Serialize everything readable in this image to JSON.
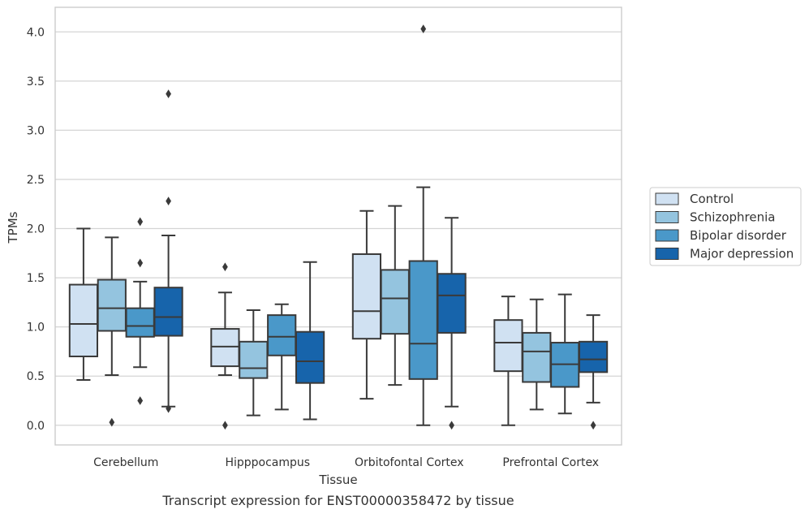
{
  "caption": "Transcript expression for ENST00000358472 by tissue",
  "chart_data": {
    "type": "box",
    "xlabel": "Tissue",
    "ylabel": "TPMs",
    "ylim": [
      -0.2,
      4.25
    ],
    "yticks": [
      0.0,
      0.5,
      1.0,
      1.5,
      2.0,
      2.5,
      3.0,
      3.5,
      4.0
    ],
    "ytick_labels": [
      "0.0",
      "0.5",
      "1.0",
      "1.5",
      "2.0",
      "2.5",
      "3.0",
      "3.5",
      "4.0"
    ],
    "grid": "horizontal",
    "legend_position": "right",
    "categories": [
      "Cerebellum",
      "Hipppocampus",
      "Orbitofontal Cortex",
      "Prefrontal Cortex"
    ],
    "series": [
      {
        "name": "Control",
        "color": "#d0e1f2",
        "boxes": [
          {
            "whislo": 0.46,
            "q1": 0.7,
            "med": 1.03,
            "q3": 1.43,
            "whishi": 2.0,
            "fliers": []
          },
          {
            "whislo": 0.51,
            "q1": 0.6,
            "med": 0.8,
            "q3": 0.98,
            "whishi": 1.35,
            "fliers": [
              1.61,
              0.0
            ]
          },
          {
            "whislo": 0.27,
            "q1": 0.88,
            "med": 1.16,
            "q3": 1.74,
            "whishi": 2.18,
            "fliers": []
          },
          {
            "whislo": 0.0,
            "q1": 0.55,
            "med": 0.84,
            "q3": 1.07,
            "whishi": 1.31,
            "fliers": []
          }
        ]
      },
      {
        "name": "Schizophrenia",
        "color": "#94c4df",
        "boxes": [
          {
            "whislo": 0.51,
            "q1": 0.96,
            "med": 1.19,
            "q3": 1.48,
            "whishi": 1.91,
            "fliers": [
              0.03
            ]
          },
          {
            "whislo": 0.1,
            "q1": 0.48,
            "med": 0.58,
            "q3": 0.85,
            "whishi": 1.17,
            "fliers": []
          },
          {
            "whislo": 0.41,
            "q1": 0.93,
            "med": 1.29,
            "q3": 1.58,
            "whishi": 2.23,
            "fliers": []
          },
          {
            "whislo": 0.16,
            "q1": 0.44,
            "med": 0.75,
            "q3": 0.94,
            "whishi": 1.28,
            "fliers": []
          }
        ]
      },
      {
        "name": "Bipolar disorder",
        "color": "#4a98c9",
        "boxes": [
          {
            "whislo": 0.59,
            "q1": 0.9,
            "med": 1.01,
            "q3": 1.19,
            "whishi": 1.46,
            "fliers": [
              2.07,
              1.65,
              0.25
            ]
          },
          {
            "whislo": 0.16,
            "q1": 0.71,
            "med": 0.9,
            "q3": 1.12,
            "whishi": 1.23,
            "fliers": []
          },
          {
            "whislo": 0.0,
            "q1": 0.47,
            "med": 0.83,
            "q3": 1.67,
            "whishi": 2.42,
            "fliers": [
              4.03
            ]
          },
          {
            "whislo": 0.12,
            "q1": 0.39,
            "med": 0.62,
            "q3": 0.84,
            "whishi": 1.33,
            "fliers": []
          }
        ]
      },
      {
        "name": "Major depression",
        "color": "#1764ab",
        "boxes": [
          {
            "whislo": 0.19,
            "q1": 0.91,
            "med": 1.1,
            "q3": 1.4,
            "whishi": 1.93,
            "fliers": [
              3.37,
              2.28,
              0.17
            ]
          },
          {
            "whislo": 0.06,
            "q1": 0.43,
            "med": 0.65,
            "q3": 0.95,
            "whishi": 1.66,
            "fliers": []
          },
          {
            "whislo": 0.19,
            "q1": 0.94,
            "med": 1.32,
            "q3": 1.54,
            "whishi": 2.11,
            "fliers": [
              0.0
            ]
          },
          {
            "whislo": 0.23,
            "q1": 0.54,
            "med": 0.67,
            "q3": 0.85,
            "whishi": 1.12,
            "fliers": [
              0.0
            ]
          }
        ]
      }
    ]
  }
}
